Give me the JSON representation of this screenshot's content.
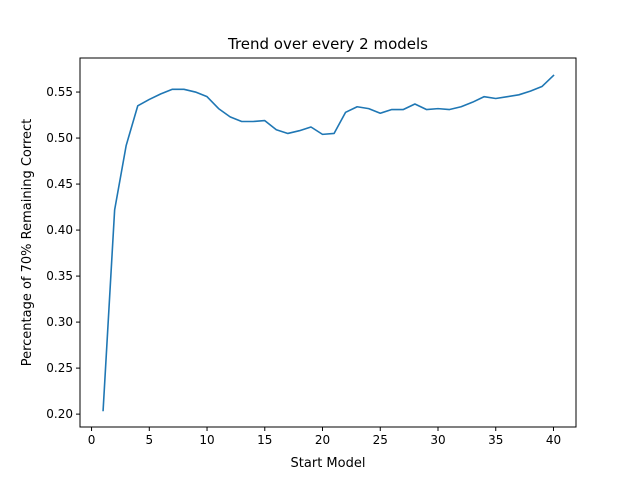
{
  "chart_data": {
    "type": "line",
    "title": "Trend over every 2 models",
    "xlabel": "Start Model",
    "ylabel": "Percentage of 70% Remaining Correct",
    "xlim": [
      -1,
      41.95
    ],
    "ylim": [
      0.186,
      0.587
    ],
    "xticks": [
      0,
      5,
      10,
      15,
      20,
      25,
      30,
      35,
      40
    ],
    "yticks": [
      0.2,
      0.25,
      0.3,
      0.35,
      0.4,
      0.45,
      0.5,
      0.55
    ],
    "grid": false,
    "legend": "none",
    "series": [
      {
        "color": "#1f77b4",
        "x": [
          1,
          2,
          3,
          4,
          5,
          6,
          7,
          8,
          9,
          10,
          11,
          12,
          13,
          14,
          15,
          16,
          17,
          18,
          19,
          20,
          21,
          22,
          23,
          24,
          25,
          26,
          27,
          28,
          29,
          30,
          31,
          32,
          33,
          34,
          35,
          36,
          37,
          38,
          39,
          40
        ],
        "y": [
          0.204,
          0.422,
          0.492,
          0.535,
          0.542,
          0.548,
          0.553,
          0.553,
          0.55,
          0.545,
          0.532,
          0.523,
          0.518,
          0.518,
          0.519,
          0.509,
          0.505,
          0.508,
          0.512,
          0.504,
          0.505,
          0.528,
          0.534,
          0.532,
          0.527,
          0.531,
          0.531,
          0.537,
          0.531,
          0.532,
          0.531,
          0.534,
          0.539,
          0.545,
          0.543,
          0.545,
          0.547,
          0.551,
          0.556,
          0.568
        ]
      }
    ]
  }
}
